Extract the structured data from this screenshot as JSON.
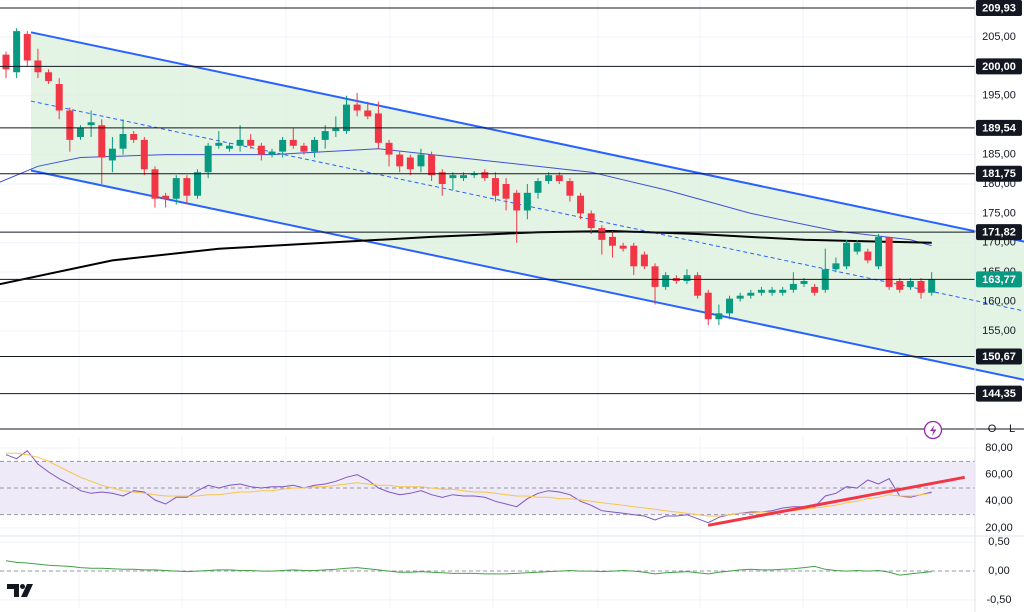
{
  "chart_data": [
    {
      "type": "candlestick",
      "pane": "price",
      "open": [
        202,
        199,
        205.5,
        201,
        199,
        197,
        192.5,
        188,
        190,
        190,
        184,
        186,
        188.5,
        187.5,
        182.5,
        178,
        177.5,
        181,
        178,
        182,
        186.5,
        186,
        186.5,
        187.5,
        186.5,
        185,
        185.5,
        187.5,
        186.5,
        185.5,
        187.5,
        189,
        189,
        193.5,
        192.5,
        192,
        187,
        185,
        184.5,
        183,
        185,
        182,
        181,
        181,
        181.5,
        182,
        181,
        180,
        178.5,
        175.5,
        178.5,
        180.5,
        181.5,
        180.5,
        178,
        175,
        172.5,
        171,
        169.5,
        169.5,
        168,
        166,
        162.5,
        164,
        163.5,
        164.5,
        161.5,
        157,
        158,
        160.5,
        161,
        161.5,
        161.5,
        161.5,
        162,
        163,
        162.5,
        162,
        165.5,
        166,
        168.5,
        168.5,
        166,
        171,
        163.5,
        162.5,
        163.5,
        161.5
      ],
      "high": [
        202.5,
        206.5,
        206,
        203,
        199.5,
        198,
        193,
        190,
        192.5,
        191,
        188,
        191,
        189,
        188,
        183,
        178.5,
        181.5,
        181.5,
        182.5,
        187,
        189,
        187,
        190,
        188.5,
        187,
        186,
        188,
        189.5,
        187,
        188,
        190,
        191.5,
        195,
        195.5,
        194,
        194,
        187.5,
        185.5,
        185,
        186,
        185.5,
        182.5,
        182,
        182,
        182.2,
        182.5,
        182,
        181,
        179,
        180,
        181,
        182,
        182,
        181,
        178.5,
        175.5,
        173,
        172,
        170,
        170,
        168.5,
        166.5,
        165,
        164.5,
        165.5,
        165,
        162,
        159.5,
        161,
        161.5,
        162,
        162.5,
        162.5,
        162.5,
        165,
        164,
        163,
        169,
        167.5,
        170.5,
        170.5,
        169,
        171.5,
        171,
        164,
        164,
        164,
        165
      ],
      "low": [
        198,
        198,
        200,
        198,
        197,
        191,
        185.5,
        187.5,
        188,
        180,
        182,
        185,
        187,
        181.5,
        176,
        176,
        176.5,
        176.5,
        177.5,
        181,
        186,
        185.5,
        185.5,
        186,
        184,
        184.5,
        184.5,
        186,
        185,
        184.5,
        186,
        188,
        188.5,
        191.5,
        191,
        186,
        183,
        182,
        181.5,
        182,
        180.5,
        178,
        179,
        180.5,
        181,
        180.5,
        177,
        175.5,
        170,
        174,
        177.5,
        180,
        180,
        177,
        174,
        171.5,
        168,
        167.5,
        168.5,
        164.5,
        165.5,
        159.5,
        162,
        163,
        163,
        160.5,
        156,
        156,
        157,
        160,
        160.5,
        161,
        161,
        161,
        161.5,
        162.5,
        161,
        161.5,
        165,
        165.5,
        168,
        166.5,
        165.5,
        162,
        161.5,
        162,
        160.5,
        161
      ],
      "close": [
        199.5,
        206,
        201,
        199,
        197.5,
        192.5,
        187.5,
        189.5,
        190.5,
        184.5,
        186,
        188.5,
        187.5,
        182.5,
        177.5,
        177.5,
        181,
        178,
        182,
        186.5,
        187,
        186.5,
        187.5,
        186.5,
        185,
        185.5,
        187.5,
        186.5,
        185.5,
        187.5,
        189,
        189.5,
        193.5,
        192.5,
        191.5,
        187,
        185,
        183,
        182.5,
        185,
        181.5,
        180,
        181.5,
        181.5,
        181.8,
        181,
        178,
        177.5,
        175.5,
        178.5,
        180.5,
        181.5,
        180.5,
        178,
        175,
        172.5,
        170.5,
        169.5,
        169,
        166,
        166,
        162.5,
        164.5,
        163.5,
        164.5,
        161,
        157,
        158,
        160.5,
        161,
        161.5,
        162,
        162,
        162,
        163,
        163.5,
        161.5,
        165.5,
        166.5,
        170,
        170,
        167,
        171,
        162.5,
        162,
        163.5,
        161.5,
        163.77
      ],
      "up_color": "#089981",
      "down_color": "#f23645",
      "ylim": [
        138.33,
        211.29
      ],
      "yticks": [
        {
          "value": 155,
          "label": "155,00"
        },
        {
          "value": 160,
          "label": "160,00"
        },
        {
          "value": 165,
          "label": "165,00"
        },
        {
          "value": 170,
          "label": "170,00"
        },
        {
          "value": 175,
          "label": "175,00"
        },
        {
          "value": 180,
          "label": "180,00"
        },
        {
          "value": 185,
          "label": "185,00"
        },
        {
          "value": 195,
          "label": "195,00"
        },
        {
          "value": 205,
          "label": "205,00"
        }
      ],
      "grid": true,
      "overlays": [
        {
          "color": "#3f51d8",
          "x": [
            -1,
            3,
            7,
            15,
            25,
            35,
            45,
            55,
            62,
            70,
            78,
            85,
            87
          ],
          "values": [
            180,
            183,
            184.5,
            185,
            185,
            186,
            184,
            182,
            179,
            175,
            172,
            170.5,
            169.5
          ]
        },
        {
          "color": "#000000",
          "x": [
            -1,
            10,
            20,
            30,
            40,
            50,
            57,
            65,
            75,
            87
          ],
          "values": [
            162.8,
            167,
            169,
            170,
            171,
            171.8,
            172,
            171.5,
            170.5,
            170
          ]
        }
      ],
      "channel": {
        "color": "#2962ff",
        "fill": "#d9f0d9",
        "upper": {
          "x": [
            2.35,
            95.7
          ],
          "y": [
            205.8,
            170.2
          ]
        },
        "lower": {
          "x": [
            2.35,
            95.7
          ],
          "y": [
            182.3,
            146.7
          ]
        },
        "middle": {
          "x": [
            2.35,
            95.7
          ],
          "y": [
            194.1,
            158.4
          ],
          "dashed": true
        }
      },
      "levels": [
        {
          "value": 209.93,
          "label": "209,93"
        },
        {
          "value": 200,
          "label": "200,00"
        },
        {
          "value": 189.54,
          "label": "189,54"
        },
        {
          "value": 181.75,
          "label": "181,75"
        },
        {
          "value": 171.82,
          "label": "171,82"
        },
        {
          "value": 150.67,
          "label": "150,67"
        },
        {
          "value": 144.35,
          "label": "144,35"
        }
      ],
      "last_price": {
        "value": 163.77,
        "label": "163,77",
        "color": "#089981"
      }
    },
    {
      "type": "line",
      "pane": "rsi",
      "series": [
        {
          "color": "#7e57c2",
          "values": [
            75,
            72,
            78,
            68,
            62,
            57,
            53,
            48,
            46,
            47,
            46,
            44,
            48,
            47,
            41,
            38,
            43,
            43,
            48,
            52,
            50,
            52,
            53,
            51,
            50,
            51,
            51,
            52,
            50,
            52,
            53,
            55,
            58,
            60,
            56,
            50,
            47,
            45,
            46,
            48,
            45,
            43,
            45,
            44,
            44,
            43,
            40,
            38,
            36,
            42,
            46,
            48,
            47,
            45,
            40,
            37,
            33,
            32,
            31,
            30,
            29,
            26,
            29,
            29,
            30,
            27,
            24,
            28,
            30,
            31,
            32,
            32,
            33,
            35,
            36,
            36,
            36,
            44,
            46,
            51,
            50,
            56,
            53,
            57,
            44,
            43,
            45,
            47
          ]
        },
        {
          "color": "#f7c548",
          "values": [
            76,
            76,
            75,
            73,
            70,
            66,
            62,
            58,
            55,
            52,
            50,
            48,
            47,
            46,
            45,
            44,
            44,
            44,
            44,
            45,
            45,
            46,
            47,
            47,
            48,
            48,
            49,
            50,
            50,
            51,
            51,
            52,
            53,
            54,
            53,
            52,
            52,
            51,
            51,
            51,
            50,
            49,
            49,
            48,
            47,
            47,
            46,
            45,
            44,
            44,
            43,
            43,
            42,
            42,
            41,
            40,
            39,
            38,
            37,
            36,
            35,
            34,
            33,
            32,
            31,
            30,
            29,
            29,
            30,
            31,
            31,
            32,
            32,
            33,
            33,
            34,
            35,
            36,
            37,
            39,
            40,
            42,
            43,
            45,
            44,
            44,
            45,
            46
          ]
        }
      ],
      "ylim": [
        14.75,
        88.25
      ],
      "yticks": [
        {
          "value": 20,
          "label": "20,00"
        },
        {
          "value": 40,
          "label": "40,00"
        },
        {
          "value": 60,
          "label": "60,00"
        },
        {
          "value": 80,
          "label": "80,00"
        }
      ],
      "bands": [
        70,
        50,
        30
      ],
      "band_fill": "#efeaf8",
      "dashed": true,
      "trendline": {
        "color": "#f23645",
        "x": [
          66,
          90.1
        ],
        "y": [
          22,
          58
        ]
      }
    },
    {
      "type": "line",
      "pane": "oscillator",
      "series": [
        {
          "color": "#43a047",
          "values": [
            0.18,
            0.15,
            0.14,
            0.12,
            0.1,
            0.09,
            0.08,
            0.06,
            0.05,
            0.05,
            0.04,
            0.03,
            0.03,
            0.02,
            0.02,
            0.01,
            0,
            -0.01,
            0,
            0.01,
            0.02,
            0.02,
            0.01,
            0.01,
            0,
            0,
            0.01,
            0.02,
            0.01,
            0.01,
            0.02,
            0.03,
            0.05,
            0.06,
            0.04,
            0.02,
            0,
            -0.02,
            -0.02,
            -0.01,
            -0.02,
            -0.03,
            -0.04,
            -0.04,
            -0.04,
            -0.05,
            -0.05,
            -0.05,
            -0.04,
            -0.03,
            -0.02,
            -0.01,
            0,
            0.01,
            0,
            0,
            -0.01,
            0,
            0.01,
            0,
            -0.02,
            -0.05,
            -0.03,
            -0.02,
            -0.01,
            -0.03,
            -0.05,
            -0.02,
            0,
            0.02,
            0.03,
            0.02,
            0.02,
            0.03,
            0.04,
            0.06,
            0.08,
            0.03,
            0.01,
            0,
            0.01,
            0,
            0.01,
            -0.02,
            -0.07,
            -0.05,
            -0.03,
            -0.01
          ]
        }
      ],
      "ylim": [
        -0.64,
        0.59
      ],
      "yticks": [
        {
          "value": -0.5,
          "label": "-0,50"
        },
        {
          "value": 0,
          "label": "0,00"
        },
        {
          "value": 0.5,
          "label": "0,50"
        }
      ],
      "zero_line": 0,
      "dashed": true
    }
  ],
  "ui": {
    "buttons": [
      "O",
      "L"
    ]
  }
}
